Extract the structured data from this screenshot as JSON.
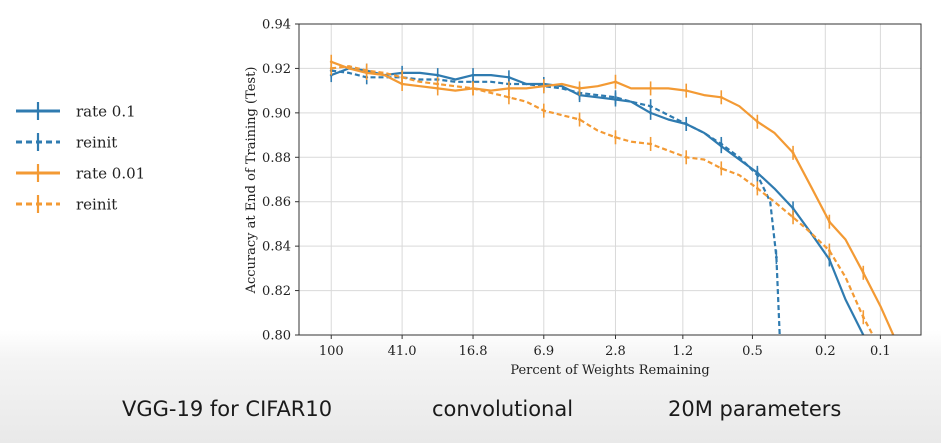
{
  "caption": {
    "left": "VGG-19 for CIFAR10",
    "middle": "convolutional",
    "right": "20M parameters"
  },
  "legend": [
    {
      "label": "rate 0.1",
      "color": "#2f7bb0",
      "style": "solid"
    },
    {
      "label": "reinit",
      "color": "#2f7bb0",
      "style": "dashed"
    },
    {
      "label": "rate 0.01",
      "color": "#f39a34",
      "style": "solid"
    },
    {
      "label": "reinit",
      "color": "#f39a34",
      "style": "dashed"
    }
  ],
  "chart_data": {
    "type": "line",
    "xlabel": "Percent of Weights Remaining",
    "ylabel": "Accuracy at End of Training (Test)",
    "x_scale": "log-reversed",
    "x_ticks": [
      100,
      41.0,
      16.8,
      6.9,
      2.8,
      1.2,
      0.5,
      0.2,
      0.1
    ],
    "x_tick_labels": [
      "100",
      "41.0",
      "16.8",
      "6.9",
      "2.8",
      "1.2",
      "0.5",
      "0.2",
      "0.1"
    ],
    "y_ticks": [
      0.8,
      0.82,
      0.84,
      0.86,
      0.88,
      0.9,
      0.92,
      0.94
    ],
    "y_tick_labels": [
      "0.80",
      "0.82",
      "0.84",
      "0.86",
      "0.88",
      "0.90",
      "0.92",
      "0.94"
    ],
    "xlim": [
      150,
      0.06
    ],
    "ylim": [
      0.8,
      0.94
    ],
    "grid": true,
    "series": [
      {
        "name": "rate 0.1",
        "color": "#2f7bb0",
        "style": "solid",
        "points": [
          [
            100,
            0.917
          ],
          [
            80,
            0.92
          ],
          [
            64,
            0.919
          ],
          [
            51.2,
            0.917
          ],
          [
            41.0,
            0.918
          ],
          [
            32.8,
            0.918
          ],
          [
            26.2,
            0.917
          ],
          [
            21.0,
            0.915
          ],
          [
            16.8,
            0.917
          ],
          [
            13.4,
            0.917
          ],
          [
            10.7,
            0.916
          ],
          [
            8.6,
            0.913
          ],
          [
            6.9,
            0.913
          ],
          [
            5.5,
            0.912
          ],
          [
            4.4,
            0.908
          ],
          [
            3.5,
            0.907
          ],
          [
            2.8,
            0.906
          ],
          [
            2.3,
            0.905
          ],
          [
            1.8,
            0.9
          ],
          [
            1.44,
            0.897
          ],
          [
            1.15,
            0.895
          ],
          [
            0.92,
            0.891
          ],
          [
            0.74,
            0.885
          ],
          [
            0.59,
            0.879
          ],
          [
            0.47,
            0.873
          ],
          [
            0.38,
            0.866
          ],
          [
            0.3,
            0.857
          ],
          [
            0.24,
            0.846
          ],
          [
            0.19,
            0.834
          ],
          [
            0.155,
            0.816
          ],
          [
            0.124,
            0.8
          ]
        ]
      },
      {
        "name": "reinit",
        "color": "#2f7bb0",
        "style": "dashed",
        "points": [
          [
            100,
            0.919
          ],
          [
            80,
            0.918
          ],
          [
            64,
            0.916
          ],
          [
            51.2,
            0.916
          ],
          [
            41.0,
            0.916
          ],
          [
            32.8,
            0.915
          ],
          [
            26.2,
            0.915
          ],
          [
            21.0,
            0.914
          ],
          [
            16.8,
            0.914
          ],
          [
            13.4,
            0.914
          ],
          [
            10.7,
            0.913
          ],
          [
            8.6,
            0.913
          ],
          [
            6.9,
            0.912
          ],
          [
            5.5,
            0.911
          ],
          [
            4.4,
            0.909
          ],
          [
            3.5,
            0.908
          ],
          [
            2.8,
            0.907
          ],
          [
            2.3,
            0.905
          ],
          [
            1.8,
            0.903
          ],
          [
            1.44,
            0.899
          ],
          [
            1.15,
            0.895
          ],
          [
            0.92,
            0.891
          ],
          [
            0.74,
            0.886
          ],
          [
            0.59,
            0.88
          ],
          [
            0.47,
            0.872
          ],
          [
            0.4,
            0.86
          ],
          [
            0.37,
            0.835
          ],
          [
            0.355,
            0.8
          ]
        ]
      },
      {
        "name": "rate 0.01",
        "color": "#f39a34",
        "style": "solid",
        "points": [
          [
            100,
            0.923
          ],
          [
            80,
            0.92
          ],
          [
            64,
            0.918
          ],
          [
            51.2,
            0.917
          ],
          [
            41.0,
            0.913
          ],
          [
            32.8,
            0.912
          ],
          [
            26.2,
            0.911
          ],
          [
            21.0,
            0.91
          ],
          [
            16.8,
            0.911
          ],
          [
            13.4,
            0.91
          ],
          [
            10.7,
            0.911
          ],
          [
            8.6,
            0.911
          ],
          [
            6.9,
            0.912
          ],
          [
            5.5,
            0.913
          ],
          [
            4.4,
            0.911
          ],
          [
            3.5,
            0.912
          ],
          [
            2.8,
            0.914
          ],
          [
            2.3,
            0.911
          ],
          [
            1.8,
            0.911
          ],
          [
            1.44,
            0.911
          ],
          [
            1.15,
            0.91
          ],
          [
            0.92,
            0.908
          ],
          [
            0.74,
            0.907
          ],
          [
            0.59,
            0.903
          ],
          [
            0.47,
            0.896
          ],
          [
            0.38,
            0.891
          ],
          [
            0.3,
            0.882
          ],
          [
            0.24,
            0.867
          ],
          [
            0.19,
            0.851
          ],
          [
            0.155,
            0.843
          ],
          [
            0.124,
            0.828
          ],
          [
            0.1,
            0.813
          ],
          [
            0.085,
            0.8
          ]
        ]
      },
      {
        "name": "reinit",
        "color": "#f39a34",
        "style": "dashed",
        "points": [
          [
            100,
            0.92
          ],
          [
            80,
            0.921
          ],
          [
            64,
            0.919
          ],
          [
            51.2,
            0.918
          ],
          [
            41.0,
            0.916
          ],
          [
            32.8,
            0.914
          ],
          [
            26.2,
            0.913
          ],
          [
            21.0,
            0.912
          ],
          [
            16.8,
            0.911
          ],
          [
            13.4,
            0.909
          ],
          [
            10.7,
            0.907
          ],
          [
            8.6,
            0.905
          ],
          [
            6.9,
            0.901
          ],
          [
            5.5,
            0.899
          ],
          [
            4.4,
            0.897
          ],
          [
            3.5,
            0.892
          ],
          [
            2.8,
            0.889
          ],
          [
            2.3,
            0.887
          ],
          [
            1.8,
            0.886
          ],
          [
            1.44,
            0.883
          ],
          [
            1.15,
            0.88
          ],
          [
            0.92,
            0.879
          ],
          [
            0.74,
            0.875
          ],
          [
            0.59,
            0.872
          ],
          [
            0.47,
            0.866
          ],
          [
            0.38,
            0.86
          ],
          [
            0.3,
            0.853
          ],
          [
            0.24,
            0.846
          ],
          [
            0.19,
            0.838
          ],
          [
            0.155,
            0.826
          ],
          [
            0.124,
            0.808
          ],
          [
            0.11,
            0.8
          ]
        ]
      }
    ]
  }
}
